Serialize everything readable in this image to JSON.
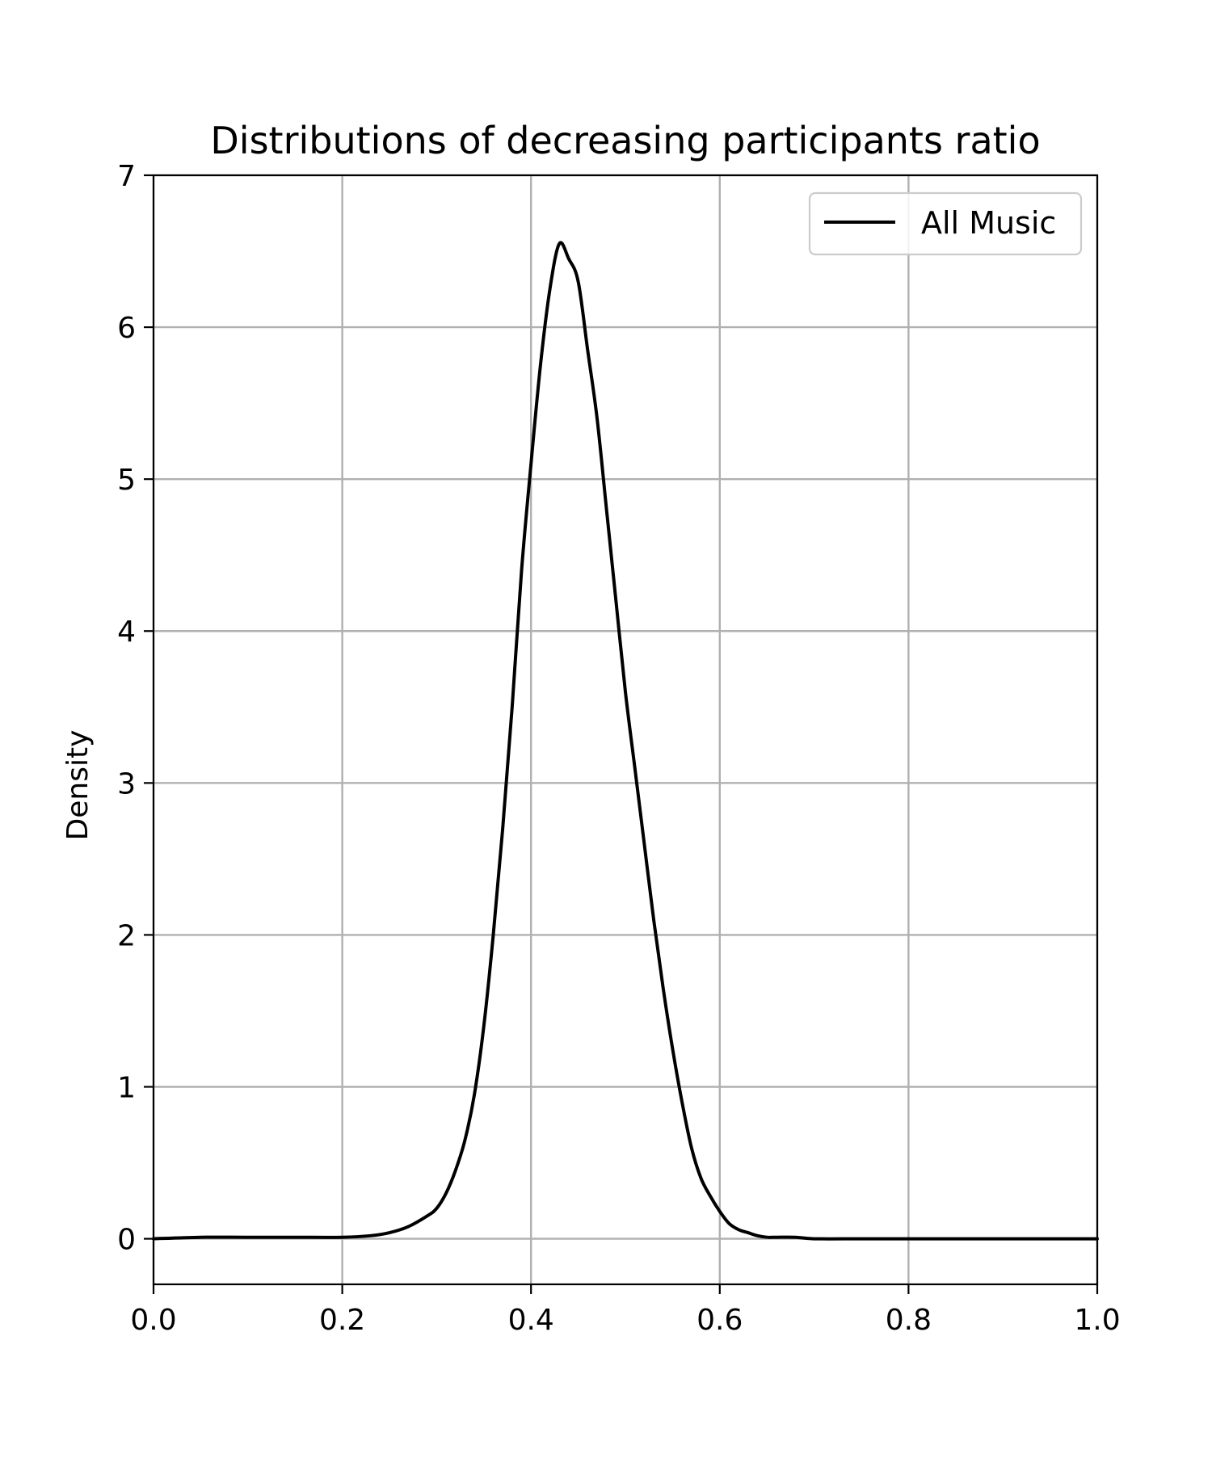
{
  "chart_data": {
    "type": "line",
    "title": "Distributions of decreasing participants ratio",
    "xlabel": "",
    "ylabel": "Density",
    "xlim": [
      0.0,
      1.0
    ],
    "ylim": [
      -0.3,
      7.0
    ],
    "x_ticks": [
      "0.0",
      "0.2",
      "0.4",
      "0.6",
      "0.8",
      "1.0"
    ],
    "y_ticks": [
      "0",
      "1",
      "2",
      "3",
      "4",
      "5",
      "6",
      "7"
    ],
    "grid": true,
    "legend_position": "top-right",
    "series": [
      {
        "name": "All Music",
        "color": "#000000",
        "x": [
          0.0,
          0.05,
          0.1,
          0.15,
          0.2,
          0.23,
          0.25,
          0.27,
          0.29,
          0.3,
          0.31,
          0.32,
          0.33,
          0.34,
          0.35,
          0.36,
          0.37,
          0.38,
          0.39,
          0.4,
          0.41,
          0.42,
          0.43,
          0.44,
          0.45,
          0.46,
          0.47,
          0.48,
          0.49,
          0.5,
          0.51,
          0.52,
          0.53,
          0.54,
          0.55,
          0.56,
          0.57,
          0.58,
          0.59,
          0.6,
          0.61,
          0.62,
          0.63,
          0.64,
          0.65,
          0.66,
          0.68,
          0.7,
          0.75,
          0.8,
          0.9,
          1.0
        ],
        "values": [
          0.0,
          0.01,
          0.01,
          0.01,
          0.01,
          0.02,
          0.04,
          0.08,
          0.15,
          0.2,
          0.3,
          0.45,
          0.65,
          0.95,
          1.4,
          2.0,
          2.7,
          3.5,
          4.4,
          5.1,
          5.75,
          6.25,
          6.55,
          6.45,
          6.3,
          5.85,
          5.4,
          4.8,
          4.2,
          3.6,
          3.1,
          2.6,
          2.1,
          1.65,
          1.25,
          0.9,
          0.6,
          0.4,
          0.28,
          0.18,
          0.1,
          0.06,
          0.04,
          0.02,
          0.01,
          0.01,
          0.01,
          0.0,
          0.0,
          0.0,
          0.0,
          0.0
        ]
      }
    ]
  }
}
